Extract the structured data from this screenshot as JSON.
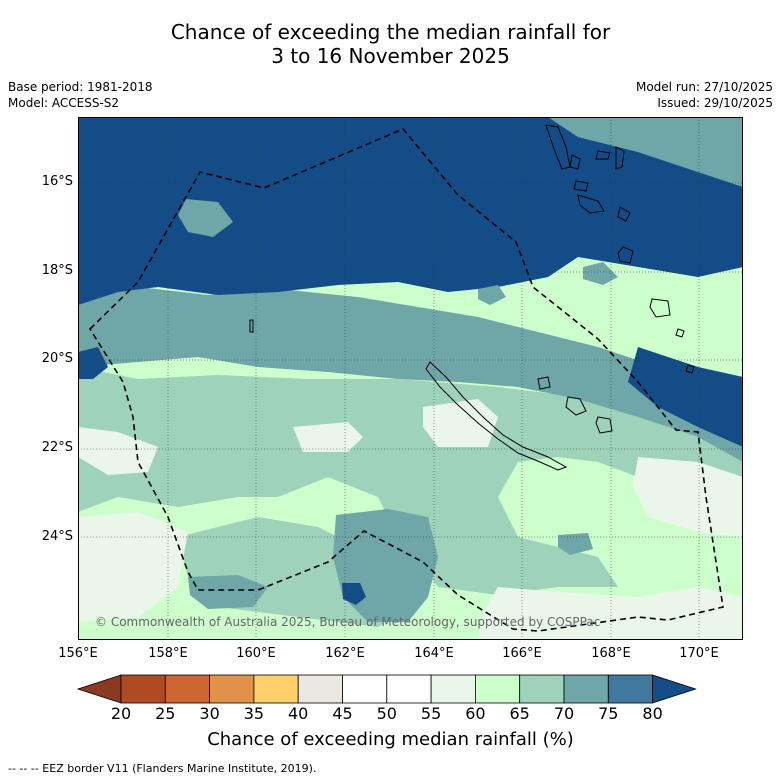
{
  "title_line1": "Chance of exceeding the median rainfall for",
  "title_line2": "3 to 16 November 2025",
  "base_period": "Base period: 1981-2018",
  "model": "Model: ACCESS-S2",
  "model_run": "Model run: 27/10/2025",
  "issued": "Issued: 29/10/2025",
  "lat_labels": [
    "16°S",
    "18°S",
    "20°S",
    "22°S",
    "24°S"
  ],
  "lon_labels": [
    "156°E",
    "158°E",
    "160°E",
    "162°E",
    "164°E",
    "166°E",
    "168°E",
    "170°E"
  ],
  "copyright": "© Commonwealth of Australia 2025, Bureau of Meteorology, supported by COSPPac",
  "colorbar": {
    "ticks": [
      "20",
      "25",
      "30",
      "35",
      "40",
      "45",
      "50",
      "55",
      "60",
      "65",
      "70",
      "75",
      "80"
    ],
    "colors": [
      "#8b3a1f",
      "#b04a24",
      "#cd6533",
      "#e0924a",
      "#fdd06a",
      "#ebe8e3",
      "#ffffff",
      "#ffffff",
      "#eaf6ea",
      "#ccffcc",
      "#9ed2bb",
      "#6fa6a8",
      "#3f7a9e",
      "#134c87"
    ],
    "label": "Chance of exceeding median rainfall (%)"
  },
  "eez_note": "--  --  -- EEZ border V11 (Flanders Marine Institute, 2019)."
}
